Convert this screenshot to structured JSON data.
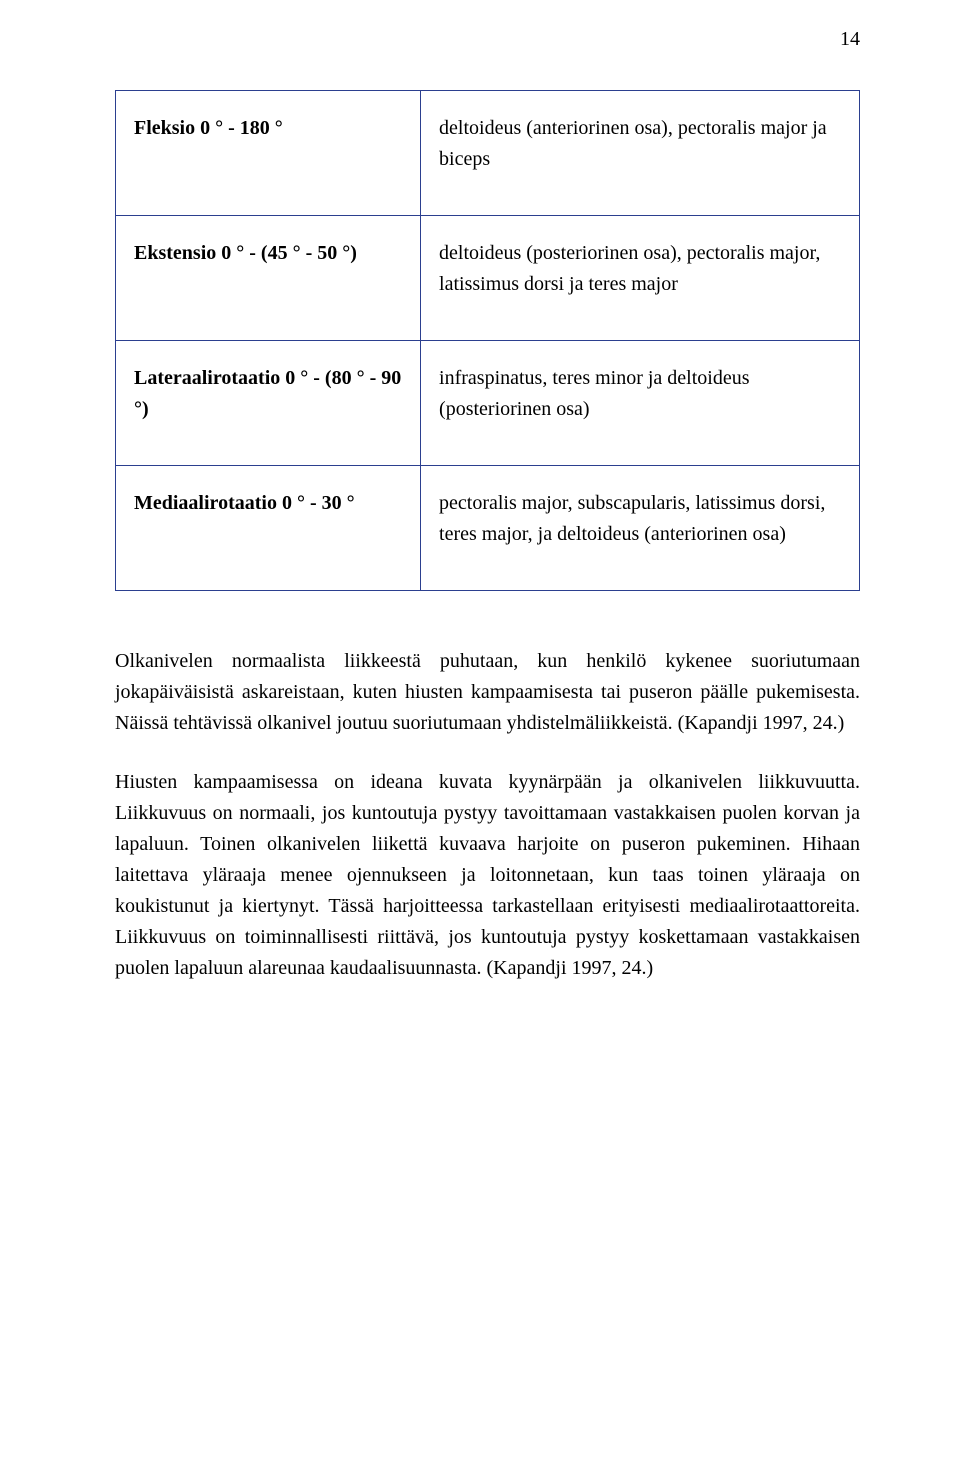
{
  "page_number": "14",
  "table": {
    "border_color": "#2b3f8f",
    "rows": [
      {
        "left": "Fleksio 0 ° - 180 °",
        "right": "deltoideus (anteriorinen osa), pectoralis major ja biceps"
      },
      {
        "left": "Ekstensio 0 ° - (45 ° - 50 °)",
        "right": "deltoideus (posteriorinen osa), pectoralis major, latissimus dorsi ja teres major"
      },
      {
        "left": "Lateraalirotaatio 0 ° - (80 ° - 90 °)",
        "right": "infraspinatus, teres minor ja deltoideus (posteriorinen osa)"
      },
      {
        "left": "Mediaalirotaatio 0 ° - 30 °",
        "right": "pectoralis major, subscapularis, latissimus dorsi, teres major, ja deltoideus (anteriorinen osa)"
      }
    ]
  },
  "paragraphs": [
    "Olkanivelen normaalista liikkeestä puhutaan, kun henkilö kykenee suoriutumaan jokapäiväisistä askareistaan, kuten hiusten kampaamisesta tai puseron päälle pukemisesta. Näissä tehtävissä olkanivel joutuu suoriutumaan yhdistelmäliikkeistä. (Kapandji 1997, 24.)",
    "Hiusten kampaamisessa on ideana kuvata kyynärpään ja olkanivelen liikkuvuutta. Liikkuvuus on normaali, jos kuntoutuja pystyy tavoittamaan vastakkaisen puolen korvan ja lapaluun. Toinen olkanivelen liikettä kuvaava harjoite on puseron pukeminen. Hihaan laitettava yläraaja menee ojennukseen ja loitonnetaan, kun taas toinen yläraaja on koukistunut ja kiertynyt. Tässä harjoitteessa tarkastellaan erityisesti mediaalirotaattoreita. Liikkuvuus on toiminnallisesti riittävä, jos kuntoutuja pystyy koskettamaan vastakkaisen puolen lapaluun alareunaa kaudaalisuunnasta. (Kapandji 1997, 24.)"
  ]
}
